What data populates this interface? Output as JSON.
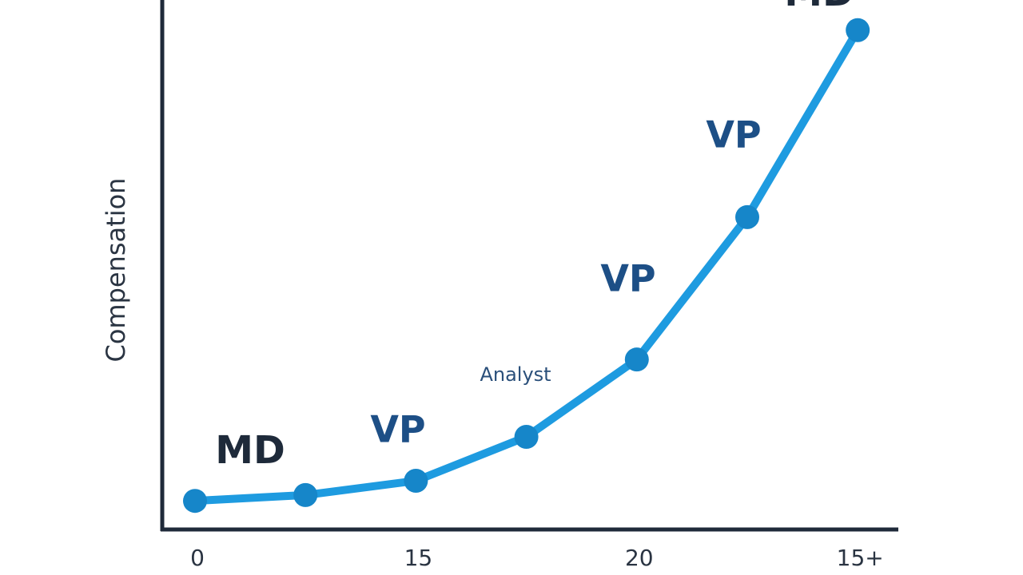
{
  "chart_data": {
    "type": "line",
    "y_label": "Compensation",
    "categories": [
      "0",
      null,
      "15",
      null,
      "20",
      null,
      "15+"
    ],
    "values": [
      5.4,
      6.5,
      9.2,
      17.5,
      32.1,
      59,
      94.3
    ],
    "color": "#1e9be0",
    "marker_color": "#1686c9",
    "ylim": [
      0,
      100
    ],
    "annotations": [
      "MD",
      "VP",
      "Analyst",
      "VP",
      "VP",
      "MD"
    ]
  }
}
